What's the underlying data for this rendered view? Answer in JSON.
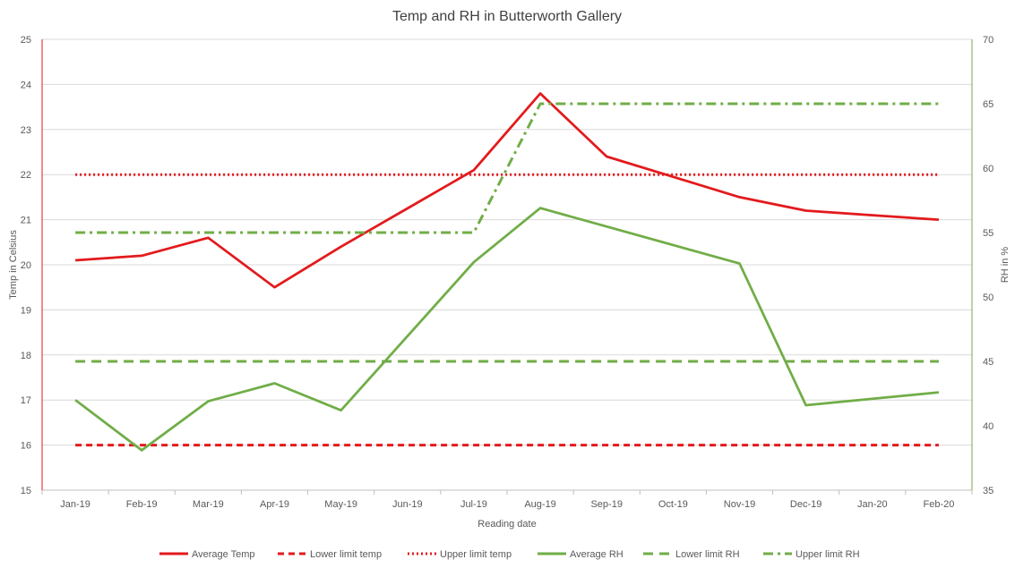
{
  "chart_data": {
    "type": "line",
    "title": "Temp and RH in Butterworth Gallery",
    "xlabel": "Reading date",
    "ylabel": "Temp in Celsius",
    "y2label": "RH in %",
    "ylim": [
      15,
      25
    ],
    "y2lim": [
      35,
      70
    ],
    "y_ticks": [
      "15",
      "16",
      "17",
      "18",
      "19",
      "20",
      "21",
      "22",
      "23",
      "24",
      "25"
    ],
    "y2_ticks": [
      "35",
      "40",
      "45",
      "50",
      "55",
      "60",
      "65",
      "70"
    ],
    "grid": true,
    "legend_position": "bottom",
    "categories": [
      "Jan-19",
      "Feb-19",
      "Mar-19",
      "Apr-19",
      "May-19",
      "Jun-19",
      "Jul-19",
      "Aug-19",
      "Sep-19",
      "Oct-19",
      "Nov-19",
      "Dec-19",
      "Jan-20",
      "Feb-20"
    ],
    "series": [
      {
        "name": "Average Temp",
        "axis": "left",
        "color": "#e31a1c",
        "dash": "solid",
        "values": [
          20.1,
          20.2,
          20.6,
          19.5,
          20.4,
          21.25,
          22.1,
          23.8,
          22.4,
          21.95,
          21.5,
          21.2,
          21.1,
          21.0
        ]
      },
      {
        "name": "Lower limit temp",
        "axis": "left",
        "color": "#e31a1c",
        "dash": "dash",
        "values": [
          16,
          16,
          16,
          16,
          16,
          16,
          16,
          16,
          16,
          16,
          16,
          16,
          16,
          16
        ]
      },
      {
        "name": "Upper limit temp",
        "axis": "left",
        "color": "#e31a1c",
        "dash": "dot",
        "values": [
          22,
          22,
          22,
          22,
          22,
          22,
          22,
          22,
          22,
          22,
          22,
          22,
          22,
          22
        ]
      },
      {
        "name": "Average RH",
        "axis": "right",
        "color": "#70ad47",
        "dash": "solid",
        "values": [
          42.0,
          38.1,
          41.9,
          43.3,
          41.2,
          null,
          52.7,
          56.9,
          null,
          null,
          52.6,
          41.6,
          null,
          42.6
        ]
      },
      {
        "name": "Lower limit RH",
        "axis": "right",
        "color": "#70ad47",
        "dash": "longdash",
        "values": [
          45,
          45,
          45,
          45,
          45,
          45,
          45,
          45,
          45,
          45,
          45,
          45,
          45,
          45
        ]
      },
      {
        "name": "Upper limit RH",
        "axis": "right",
        "color": "#70ad47",
        "dash": "dashdot",
        "values": [
          55,
          55,
          55,
          55,
          55,
          55,
          55,
          65,
          65,
          65,
          65,
          65,
          65,
          65
        ]
      }
    ]
  }
}
